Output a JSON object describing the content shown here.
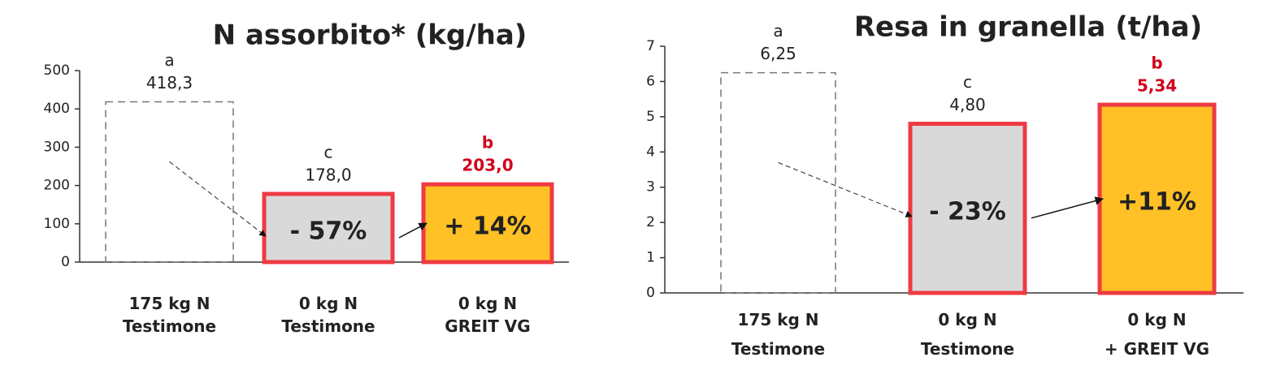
{
  "chart_data": [
    {
      "type": "bar",
      "title": "N assorbito* (kg/ha)",
      "categories": [
        "175 kg N\nTestimone",
        "0 kg N\nTestimone",
        "0 kg N\nGREIT VG"
      ],
      "values": [
        418.3,
        178.0,
        203.0
      ],
      "value_labels": [
        "418,3",
        "178,0",
        "203,0"
      ],
      "letters": [
        "a",
        "c",
        "b"
      ],
      "annotations": [
        "- 57%",
        "+ 14%"
      ],
      "colors": [
        "none",
        "#d9d9d9",
        "#ffc125"
      ],
      "edgecolors": [
        "#777777",
        "#ee3a43",
        "#ee3a43"
      ],
      "label_colors": [
        "#222222",
        "#222222",
        "#d0021b"
      ],
      "ylim": [
        0,
        500
      ],
      "yticks": [
        0,
        100,
        200,
        300,
        400,
        500
      ]
    },
    {
      "type": "bar",
      "title": "Resa in granella (t/ha)",
      "categories": [
        "175 kg N\nTestimone",
        "0 kg N\nTestimone",
        "0 kg N\n+ GREIT VG"
      ],
      "values": [
        6.25,
        4.8,
        5.34
      ],
      "value_labels": [
        "6,25",
        "4,80",
        "5,34"
      ],
      "letters": [
        "a",
        "c",
        "b"
      ],
      "annotations": [
        "- 23%",
        "+11%"
      ],
      "colors": [
        "none",
        "#d9d9d9",
        "#ffc125"
      ],
      "edgecolors": [
        "#777777",
        "#ee3a43",
        "#ee3a43"
      ],
      "label_colors": [
        "#222222",
        "#222222",
        "#d0021b"
      ],
      "ylim": [
        0,
        7
      ],
      "yticks": [
        0,
        1,
        2,
        3,
        4,
        5,
        6,
        7
      ]
    }
  ]
}
